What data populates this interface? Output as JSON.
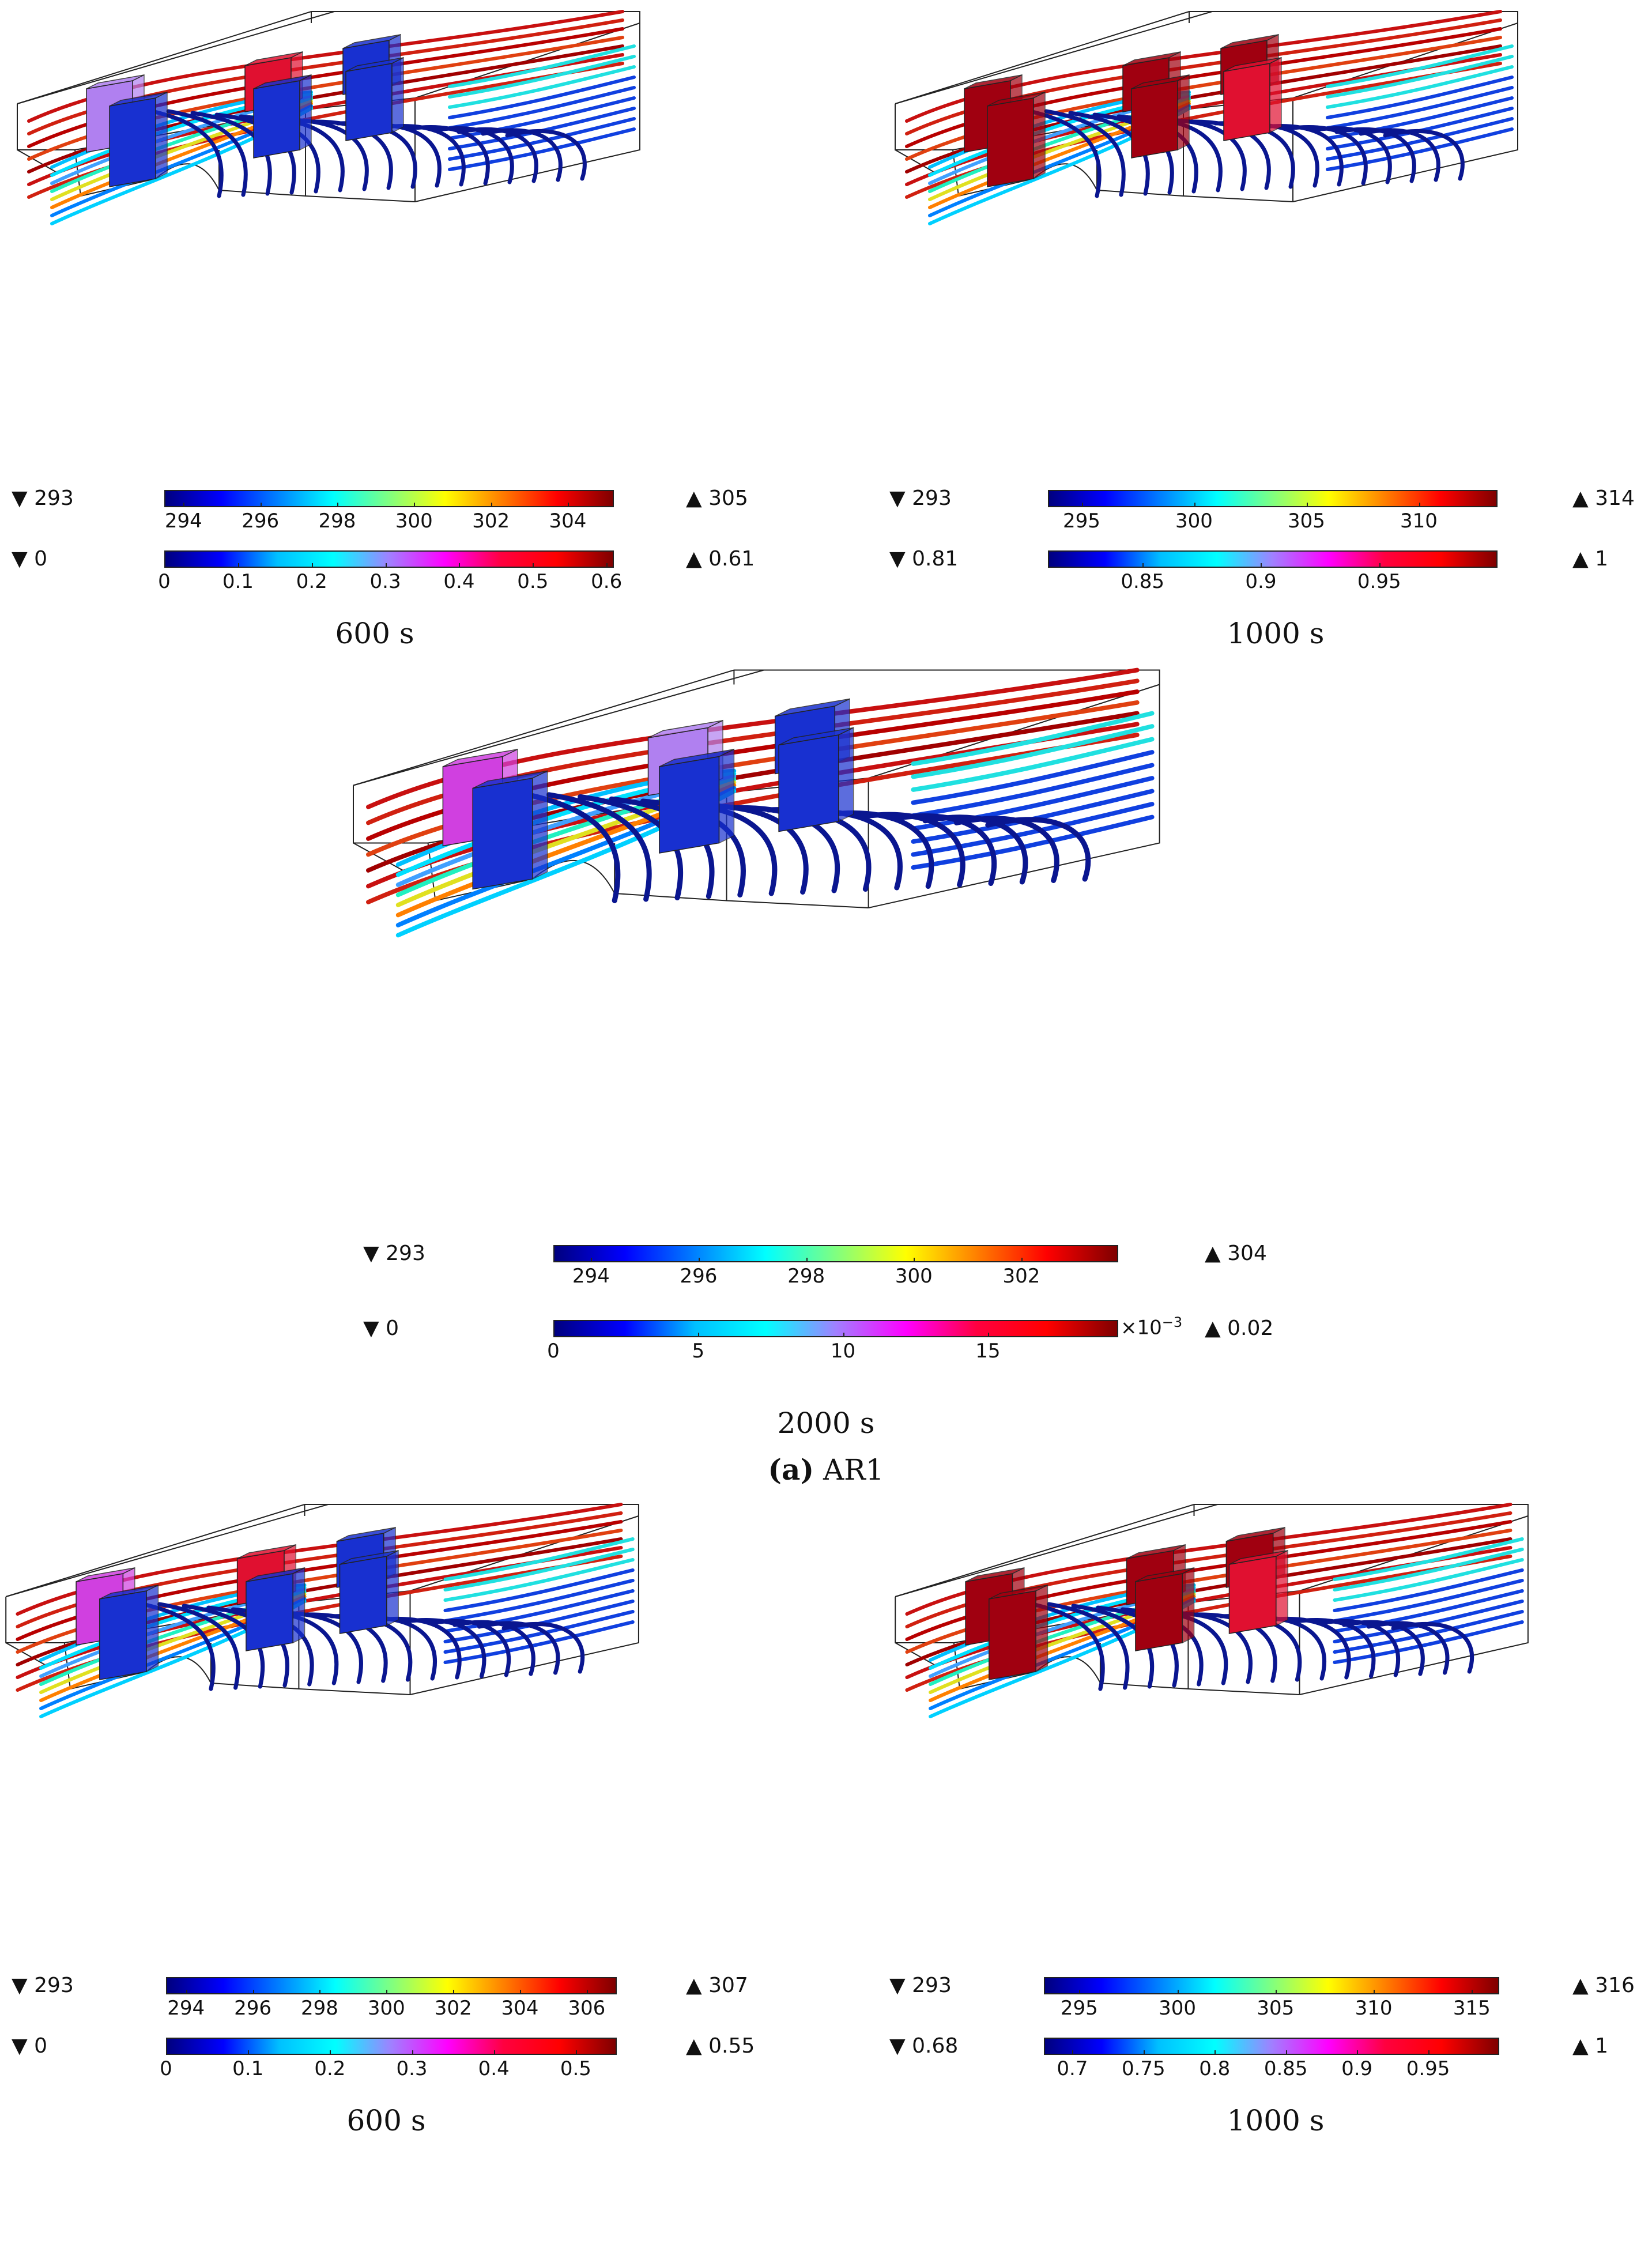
{
  "colors": {
    "temp_scale": [
      "#00007f",
      "#0000ff",
      "#0080ff",
      "#00ffff",
      "#80ff80",
      "#ffff00",
      "#ff8000",
      "#ff0000",
      "#7f0000"
    ],
    "frac_scale": [
      "#00007f",
      "#0000ff",
      "#00c0ff",
      "#00ffff",
      "#a080ff",
      "#ff00ff",
      "#ff0040",
      "#ff0000",
      "#7f0000"
    ],
    "outline": "#222222",
    "block_cold": "#1830d0",
    "block_hot": "#a00010",
    "block_pink": "#d040e0",
    "block_lilac": "#b080f0",
    "block_red": "#e01030"
  },
  "panels": [
    {
      "id": "a-600",
      "time_label": "600 s",
      "blocks": [
        "lilac",
        "cold",
        "red",
        "cold",
        "cold",
        "cold"
      ],
      "temp": {
        "min_label": "293",
        "max_label": "305",
        "min": 293.5,
        "max": 305.2,
        "ticks": [
          "294",
          "296",
          "298",
          "300",
          "302",
          "304"
        ],
        "tick_values": [
          294,
          296,
          298,
          300,
          302,
          304
        ]
      },
      "frac": {
        "min_label": "0",
        "max_label": "0.61",
        "min": 0,
        "max": 0.61,
        "ticks": [
          "0",
          "0.1",
          "0.2",
          "0.3",
          "0.4",
          "0.5",
          "0.6"
        ],
        "tick_values": [
          0,
          0.1,
          0.2,
          0.3,
          0.4,
          0.5,
          0.6
        ]
      }
    },
    {
      "id": "a-1000",
      "time_label": "1000 s",
      "blocks": [
        "hot",
        "hot",
        "hot",
        "hot",
        "hot",
        "red"
      ],
      "temp": {
        "min_label": "293",
        "max_label": "314",
        "min": 293.5,
        "max": 313.5,
        "ticks": [
          "295",
          "300",
          "305",
          "310"
        ],
        "tick_values": [
          295,
          300,
          305,
          310
        ]
      },
      "frac": {
        "min_label": "0.81",
        "max_label": "1",
        "min": 0.81,
        "max": 1.0,
        "ticks": [
          "0.85",
          "0.9",
          "0.95"
        ],
        "tick_values": [
          0.85,
          0.9,
          0.95
        ]
      }
    },
    {
      "id": "a-2000",
      "time_label": "2000 s",
      "blocks": [
        "pink",
        "cold",
        "lilac",
        "cold",
        "cold",
        "cold"
      ],
      "temp": {
        "min_label": "293",
        "max_label": "304",
        "min": 293.3,
        "max": 303.8,
        "ticks": [
          "294",
          "296",
          "298",
          "300",
          "302"
        ],
        "tick_values": [
          294,
          296,
          298,
          300,
          302
        ]
      },
      "frac": {
        "min_label": "0",
        "max_label": "0.02",
        "min": 0,
        "max": 19.5,
        "ticks": [
          "0",
          "5",
          "10",
          "15"
        ],
        "tick_values": [
          0,
          5,
          10,
          15
        ],
        "exponent_label": "×10",
        "exponent": "−3"
      }
    },
    {
      "id": "b-600",
      "time_label": "600 s",
      "blocks": [
        "pink",
        "cold",
        "red",
        "cold",
        "cold",
        "cold"
      ],
      "temp": {
        "min_label": "293",
        "max_label": "307",
        "min": 293.4,
        "max": 306.9,
        "ticks": [
          "294",
          "296",
          "298",
          "300",
          "302",
          "304",
          "306"
        ],
        "tick_values": [
          294,
          296,
          298,
          300,
          302,
          304,
          306
        ]
      },
      "frac": {
        "min_label": "0",
        "max_label": "0.55",
        "min": 0,
        "max": 0.55,
        "ticks": [
          "0",
          "0.1",
          "0.2",
          "0.3",
          "0.4",
          "0.5"
        ],
        "tick_values": [
          0,
          0.1,
          0.2,
          0.3,
          0.4,
          0.5
        ]
      }
    },
    {
      "id": "b-1000",
      "time_label": "1000 s",
      "blocks": [
        "hot",
        "hot",
        "hot",
        "hot",
        "hot",
        "red"
      ],
      "temp": {
        "min_label": "293",
        "max_label": "316",
        "min": 293.2,
        "max": 316.4,
        "ticks": [
          "295",
          "300",
          "305",
          "310",
          "315"
        ],
        "tick_values": [
          295,
          300,
          305,
          310,
          315
        ]
      },
      "frac": {
        "min_label": "0.68",
        "max_label": "1",
        "min": 0.68,
        "max": 1.0,
        "ticks": [
          "0.7",
          "0.75",
          "0.8",
          "0.85",
          "0.9",
          "0.95"
        ],
        "tick_values": [
          0.7,
          0.75,
          0.8,
          0.85,
          0.9,
          0.95
        ]
      }
    }
  ],
  "subcaption_a": {
    "letter": "(a)",
    "text": "AR1"
  }
}
